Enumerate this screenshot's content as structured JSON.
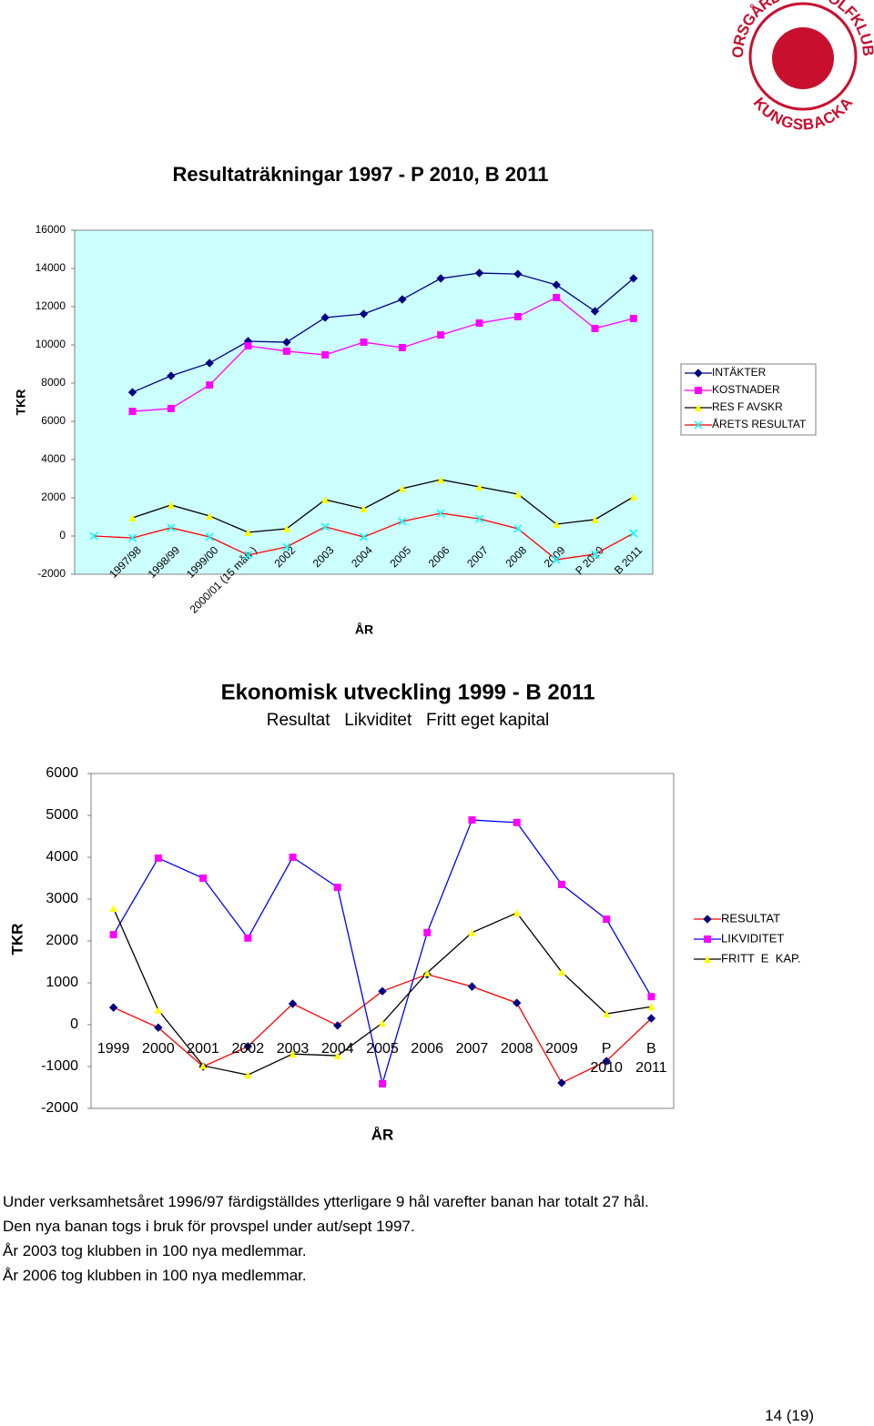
{
  "logo": {
    "top": "FORSGÅRDENS GOLFKLUBB",
    "bottom": "KUNGSBACKA"
  },
  "chart_data": [
    {
      "type": "line",
      "title": "Resultaträkningar 1997 -  P 2010, B 2011",
      "y_label": "TKR",
      "x_label": "ÅR",
      "categories": [
        null,
        "1997/98",
        "1998/99",
        "1999/00",
        "2000/01 (15 mån.)",
        "2002",
        "2003",
        "2004",
        "2005",
        "2006",
        "2007",
        "2008",
        "2009",
        "P 2010",
        "B 2011"
      ],
      "series": [
        {
          "name": "INTÄKTER",
          "color": "#000080",
          "line_color": "#000080",
          "marker": "diamond",
          "values": [
            null,
            7520,
            8380,
            9050,
            10190,
            10140,
            11430,
            11620,
            12380,
            13480,
            13760,
            13710,
            13140,
            11760,
            13480
          ]
        },
        {
          "name": "KOSTNADER",
          "color": "#ff00ff",
          "line_color": "#ff00ff",
          "marker": "square",
          "values": [
            null,
            6520,
            6670,
            7900,
            9950,
            9670,
            9480,
            10140,
            9860,
            10520,
            11140,
            11480,
            12480,
            10860,
            11380
          ]
        },
        {
          "name": "RES F AVSKR",
          "color": "#ffff00",
          "line_color": "#000000",
          "marker": "triangle",
          "values": [
            null,
            950,
            1620,
            1050,
            190,
            380,
            1900,
            1430,
            2480,
            2950,
            2570,
            2190,
            620,
            860,
            2050
          ]
        },
        {
          "name": "ÅRETS RESULTAT",
          "color": "#00ffff",
          "line_color": "#ff0000",
          "marker": "x",
          "values": [
            0,
            -100,
            430,
            -50,
            -1000,
            -570,
            480,
            -50,
            760,
            1190,
            900,
            380,
            -1240,
            -950,
            140
          ]
        }
      ],
      "ylim": [
        -2000,
        16000
      ],
      "yticks": [
        -2000,
        0,
        2000,
        4000,
        6000,
        8000,
        10000,
        12000,
        14000,
        16000
      ],
      "grid": false,
      "legend": "right",
      "plot_background": "#ccffff"
    },
    {
      "type": "line",
      "title": "Ekonomisk utveckling 1999 - B 2011",
      "subtitle": "Resultat   Likviditet   Fritt eget kapital",
      "y_label": "TKR",
      "x_label": "ÅR",
      "categories": [
        "1999",
        "2000",
        "2001",
        "2002",
        "2003",
        "2004",
        "2005",
        "2006",
        "2007",
        "2008",
        "2009",
        "P 2010",
        "B 2011"
      ],
      "series": [
        {
          "name": "RESULTAT",
          "color": "#000080",
          "line_color": "#ff0000",
          "marker": "diamond",
          "values": [
            410,
            -70,
            -1000,
            -520,
            500,
            -20,
            800,
            1200,
            910,
            520,
            -1390,
            -870,
            150
          ]
        },
        {
          "name": "LIKVIDITET",
          "color": "#ff00ff",
          "line_color": "#0000ff",
          "marker": "square",
          "values": [
            2150,
            3980,
            3500,
            2070,
            4000,
            3280,
            -1410,
            2200,
            4890,
            4830,
            3350,
            2520,
            670
          ]
        },
        {
          "name": "FRITT  E  KAP.",
          "color": "#ffff00",
          "line_color": "#000000",
          "marker": "triangle",
          "values": [
            2780,
            350,
            -980,
            -1200,
            -700,
            -740,
            40,
            1240,
            2200,
            2670,
            1260,
            260,
            430
          ]
        }
      ],
      "ylim": [
        -2000,
        6000
      ],
      "yticks": [
        -2000,
        -1000,
        0,
        1000,
        2000,
        3000,
        4000,
        5000,
        6000
      ],
      "grid": false,
      "legend": "right",
      "plot_background": "#ffffff"
    }
  ],
  "notes": [
    "Under verksamhetsåret 1996/97 färdigställdes ytterligare 9 hål varefter banan har totalt 27 hål.",
    "Den nya banan togs i bruk för provspel under aut/sept 1997.",
    "År 2003 tog klubben in 100 nya medlemmar.",
    "År 2006 tog klubben in 100 nya medlemmar."
  ],
  "page_number": "14 (19)"
}
